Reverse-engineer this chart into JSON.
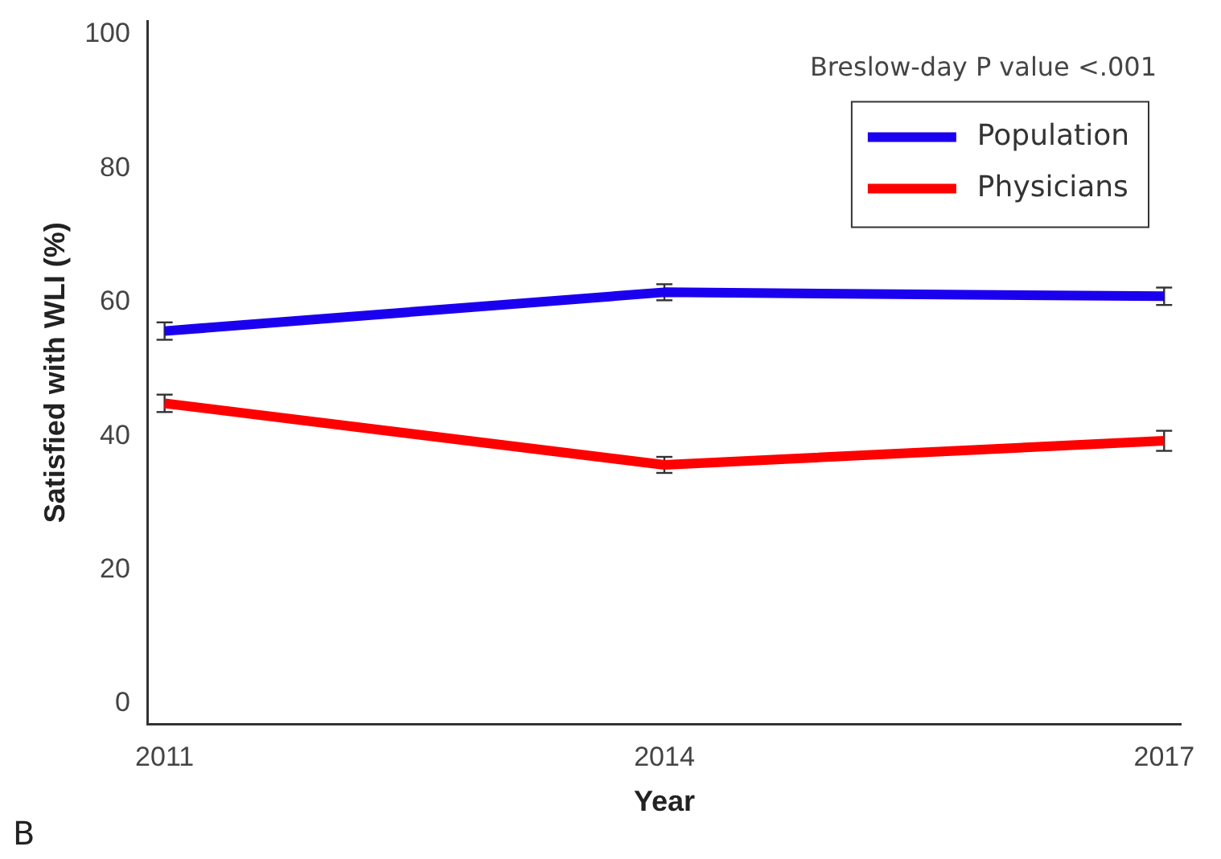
{
  "chart_data": {
    "type": "line",
    "xlabel": "Year",
    "ylabel": "Satisfied with WLI (%)",
    "x": [
      2011,
      2014,
      2017
    ],
    "xlim": [
      2010.9,
      2017.1
    ],
    "xticks": [
      2011,
      2014,
      2017
    ],
    "ylim": [
      -3,
      102
    ],
    "yticks": [
      0,
      20,
      40,
      60,
      80,
      100
    ],
    "series": [
      {
        "name": "Population",
        "color": "#1a00ee",
        "values": [
          55.7,
          61.5,
          60.9
        ],
        "errors": [
          1.3,
          1.2,
          1.3
        ]
      },
      {
        "name": "Physicians",
        "color": "#ff0000",
        "values": [
          44.9,
          35.7,
          39.3
        ],
        "errors": [
          1.3,
          1.2,
          1.5
        ]
      }
    ],
    "legend": "top right",
    "grid": false,
    "marker": "none",
    "line_style": "solid",
    "annotations": [
      "Breslow-day P value <.001",
      "B"
    ]
  }
}
